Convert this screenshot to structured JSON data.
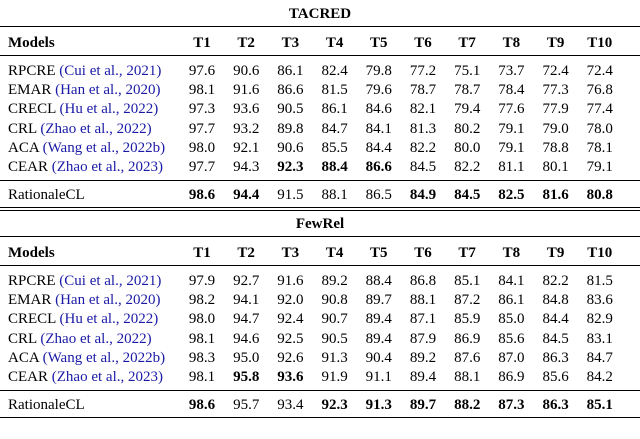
{
  "tables": [
    {
      "title": "TACRED",
      "header": [
        "Models",
        "T1",
        "T2",
        "T3",
        "T4",
        "T5",
        "T6",
        "T7",
        "T8",
        "T9",
        "T10"
      ],
      "rows": [
        {
          "name": "RPCRE",
          "cite": "(Cui et al., 2021)",
          "values": [
            "97.6",
            "90.6",
            "86.1",
            "82.4",
            "79.8",
            "77.2",
            "75.1",
            "73.7",
            "72.4",
            "72.4"
          ],
          "bold": []
        },
        {
          "name": "EMAR",
          "cite": "(Han et al., 2020)",
          "values": [
            "98.1",
            "91.6",
            "86.6",
            "81.5",
            "79.6",
            "78.7",
            "78.7",
            "78.4",
            "77.3",
            "76.8"
          ],
          "bold": []
        },
        {
          "name": "CRECL",
          "cite": "(Hu et al., 2022)",
          "values": [
            "97.3",
            "93.6",
            "90.5",
            "86.1",
            "84.6",
            "82.1",
            "79.4",
            "77.6",
            "77.9",
            "77.4"
          ],
          "bold": []
        },
        {
          "name": "CRL",
          "cite": "(Zhao et al., 2022)",
          "values": [
            "97.7",
            "93.2",
            "89.8",
            "84.7",
            "84.1",
            "81.3",
            "80.2",
            "79.1",
            "79.0",
            "78.0"
          ],
          "bold": []
        },
        {
          "name": "ACA",
          "cite": "(Wang et al., 2022b)",
          "values": [
            "98.0",
            "92.1",
            "90.6",
            "85.5",
            "84.4",
            "82.2",
            "80.0",
            "79.1",
            "78.8",
            "78.1"
          ],
          "bold": []
        },
        {
          "name": "CEAR",
          "cite": "(Zhao et al., 2023)",
          "values": [
            "97.7",
            "94.3",
            "92.3",
            "88.4",
            "86.6",
            "84.5",
            "82.2",
            "81.1",
            "80.1",
            "79.1"
          ],
          "bold": [
            2,
            3,
            4
          ]
        }
      ],
      "final": {
        "name": "RationaleCL",
        "values": [
          "98.6",
          "94.4",
          "91.5",
          "88.1",
          "86.5",
          "84.9",
          "84.5",
          "82.5",
          "81.6",
          "80.8"
        ],
        "bold": [
          0,
          1,
          5,
          6,
          7,
          8,
          9
        ]
      }
    },
    {
      "title": "FewRel",
      "header": [
        "Models",
        "T1",
        "T2",
        "T3",
        "T4",
        "T5",
        "T6",
        "T7",
        "T8",
        "T9",
        "T10"
      ],
      "rows": [
        {
          "name": "RPCRE",
          "cite": "(Cui et al., 2021)",
          "values": [
            "97.9",
            "92.7",
            "91.6",
            "89.2",
            "88.4",
            "86.8",
            "85.1",
            "84.1",
            "82.2",
            "81.5"
          ],
          "bold": []
        },
        {
          "name": "EMAR",
          "cite": "(Han et al., 2020)",
          "values": [
            "98.2",
            "94.1",
            "92.0",
            "90.8",
            "89.7",
            "88.1",
            "87.2",
            "86.1",
            "84.8",
            "83.6"
          ],
          "bold": []
        },
        {
          "name": "CRECL",
          "cite": "(Hu et al., 2022)",
          "values": [
            "98.0",
            "94.7",
            "92.4",
            "90.7",
            "89.4",
            "87.1",
            "85.9",
            "85.0",
            "84.4",
            "82.9"
          ],
          "bold": []
        },
        {
          "name": "CRL",
          "cite": "(Zhao et al., 2022)",
          "values": [
            "98.1",
            "94.6",
            "92.5",
            "90.5",
            "89.4",
            "87.9",
            "86.9",
            "85.6",
            "84.5",
            "83.1"
          ],
          "bold": []
        },
        {
          "name": "ACA",
          "cite": "(Wang et al., 2022b)",
          "values": [
            "98.3",
            "95.0",
            "92.6",
            "91.3",
            "90.4",
            "89.2",
            "87.6",
            "87.0",
            "86.3",
            "84.7"
          ],
          "bold": []
        },
        {
          "name": "CEAR",
          "cite": "(Zhao et al., 2023)",
          "values": [
            "98.1",
            "95.8",
            "93.6",
            "91.9",
            "91.1",
            "89.4",
            "88.1",
            "86.9",
            "85.6",
            "84.2"
          ],
          "bold": [
            1,
            2
          ]
        }
      ],
      "final": {
        "name": "RationaleCL",
        "values": [
          "98.6",
          "95.7",
          "93.4",
          "92.3",
          "91.3",
          "89.7",
          "88.2",
          "87.3",
          "86.3",
          "85.1"
        ],
        "bold": [
          0,
          3,
          4,
          5,
          6,
          7,
          8,
          9
        ]
      }
    }
  ]
}
